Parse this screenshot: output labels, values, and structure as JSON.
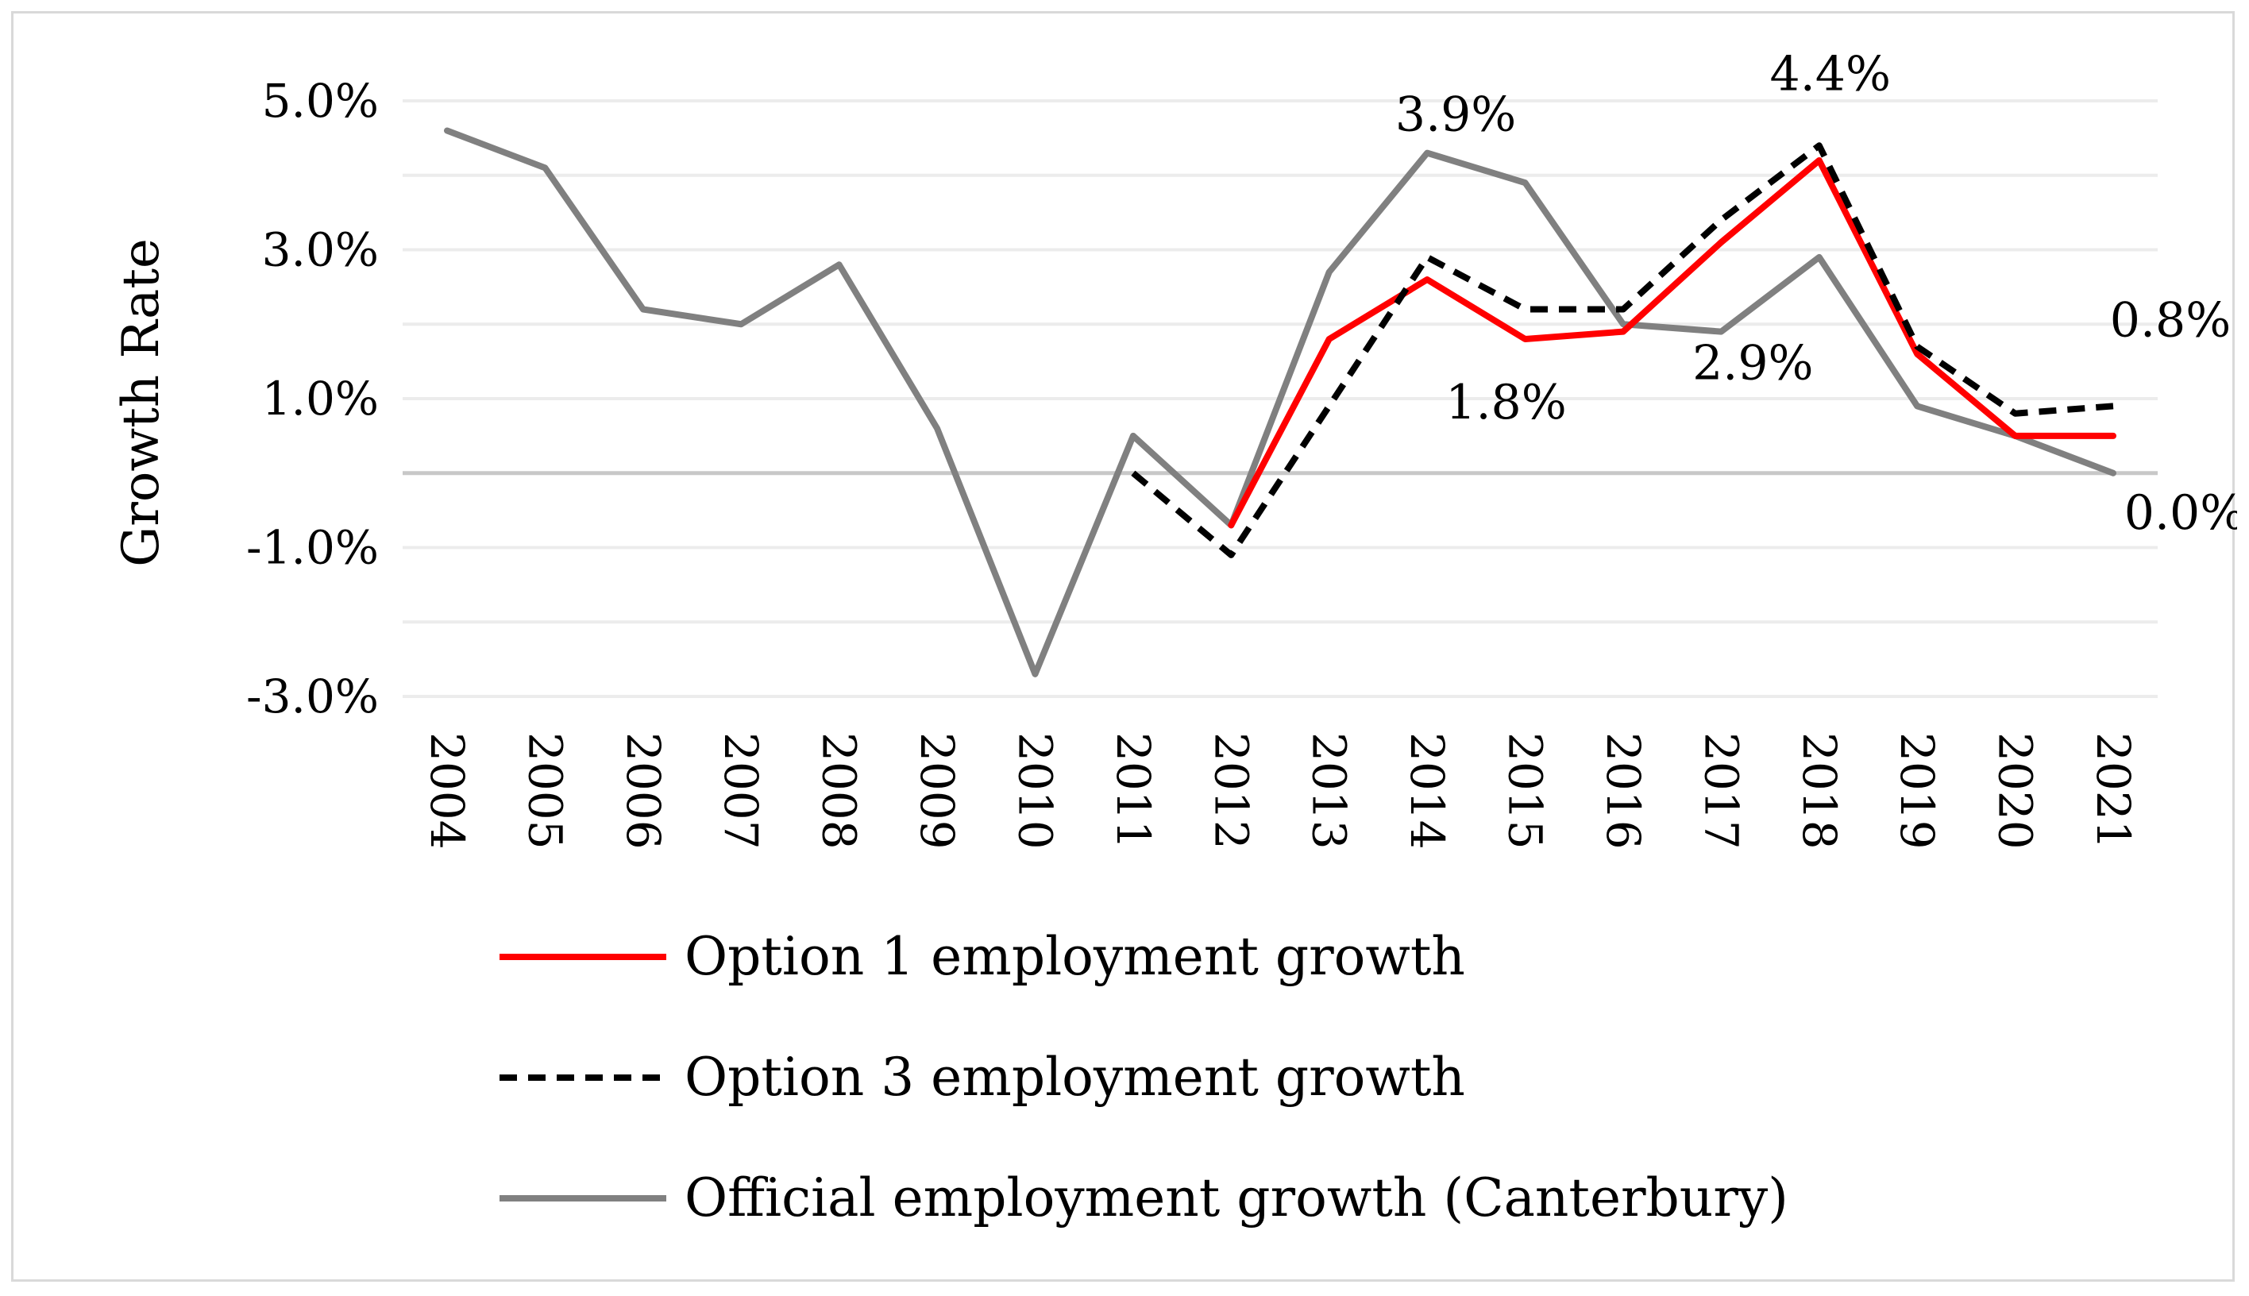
{
  "chart_data": {
    "type": "line",
    "title": "",
    "xlabel": "",
    "ylabel": "Growth Rate",
    "ylim": [
      -3.0,
      5.0
    ],
    "y_ticks": [
      "5.0%",
      "3.0%",
      "1.0%",
      "-1.0%",
      "-3.0%"
    ],
    "y_tick_values": [
      5.0,
      3.0,
      1.0,
      -1.0,
      -3.0
    ],
    "categories": [
      "2004",
      "2005",
      "2006",
      "2007",
      "2008",
      "2009",
      "2010",
      "2011",
      "2012",
      "2013",
      "2014",
      "2015",
      "2016",
      "2017",
      "2018",
      "2019",
      "2020",
      "2021"
    ],
    "grid": "horizontal",
    "legend_position": "bottom",
    "series": [
      {
        "name": "Official employment growth (Canterbury)",
        "color": "#808080",
        "style": "solid",
        "values": [
          4.6,
          4.1,
          2.2,
          2.0,
          2.8,
          0.6,
          -2.7,
          0.5,
          -0.7,
          2.7,
          4.3,
          3.9,
          2.0,
          1.9,
          2.9,
          0.9,
          0.5,
          0.0
        ]
      },
      {
        "name": "Option 1 employment growth",
        "color": "#ff0000",
        "style": "solid",
        "values": [
          null,
          null,
          null,
          null,
          null,
          null,
          null,
          null,
          -0.7,
          1.8,
          2.6,
          1.8,
          1.9,
          3.1,
          4.2,
          1.6,
          0.5,
          0.5
        ]
      },
      {
        "name": "Option 3 employment growth",
        "color": "#000000",
        "style": "dashed",
        "values": [
          null,
          null,
          null,
          null,
          null,
          null,
          null,
          0.0,
          -1.1,
          0.9,
          2.9,
          2.2,
          2.2,
          3.4,
          4.4,
          1.7,
          0.8,
          0.9
        ]
      }
    ],
    "annotations": [
      {
        "text": "3.9%",
        "category": "2014"
      },
      {
        "text": "4.4%",
        "category": "2018"
      },
      {
        "text": "1.8%",
        "category": "2015"
      },
      {
        "text": "2.9%",
        "category": "2017"
      },
      {
        "text": "0.8%",
        "category": "2021"
      },
      {
        "text": "0.0%",
        "category": "2021"
      }
    ],
    "legend": [
      {
        "label": "Option 1 employment growth",
        "color": "#ff0000",
        "style": "solid"
      },
      {
        "label": "Option 3 employment growth",
        "color": "#000000",
        "style": "dashed"
      },
      {
        "label": "Official employment growth (Canterbury)",
        "color": "#808080",
        "style": "solid"
      }
    ]
  }
}
